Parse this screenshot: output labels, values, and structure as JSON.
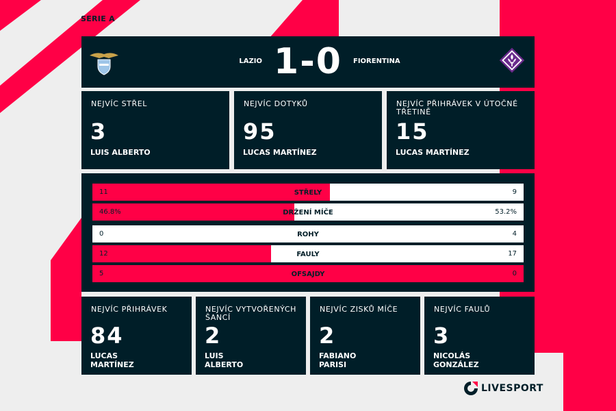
{
  "league": "SERIE A",
  "match": {
    "home_team": "LAZIO",
    "away_team": "FIORENTINA",
    "score": "1-0"
  },
  "top_cards": [
    {
      "title": "NEJVÍC STŘEL",
      "value": "3",
      "player": "LUIS ALBERTO"
    },
    {
      "title": "NEJVÍC DOTYKŮ",
      "value": "95",
      "player": "LUCAS MARTÍNEZ"
    },
    {
      "title": "NEJVÍC PŘIHRÁVEK V ÚTOČNÉ TŘETINĚ",
      "value": "15",
      "player": "LUCAS MARTÍNEZ"
    }
  ],
  "stats": [
    {
      "label": "STŘELY",
      "home": "11",
      "away": "9",
      "home_share": 0.55
    },
    {
      "label": "DRŽENÍ MÍČE",
      "home": "46.8%",
      "away": "53.2%",
      "home_share": 0.468
    },
    {
      "label": "ROHY",
      "home": "0",
      "away": "4",
      "home_share": 0.0
    },
    {
      "label": "FAULY",
      "home": "12",
      "away": "17",
      "home_share": 0.414
    },
    {
      "label": "OFSAJDY",
      "home": "5",
      "away": "0",
      "home_share": 1.0
    }
  ],
  "bottom_cards": [
    {
      "title": "NEJVÍC PŘIHRÁVEK",
      "value": "84",
      "player_line1": "LUCAS",
      "player_line2": "MARTÍNEZ"
    },
    {
      "title": "NEJVÍC VYTVOŘENÝCH ŠANCÍ",
      "value": "2",
      "player_line1": "LUIS",
      "player_line2": "ALBERTO"
    },
    {
      "title": "NEJVÍC ZISKŮ MÍČE",
      "value": "2",
      "player_line1": "FABIANO",
      "player_line2": "PARISI"
    },
    {
      "title": "NEJVÍC FAULŮ",
      "value": "3",
      "player_line1": "NICOLÁS",
      "player_line2": "GONZÁLEZ"
    }
  ],
  "brand": "LIVESPORT",
  "colors": {
    "accent": "#ff0046",
    "dark": "#001e28",
    "background": "#eeeeee",
    "fiorentina_purple": "#6a2b8c"
  },
  "icons": {
    "home_logo": "lazio-eagle-crest-icon",
    "away_logo": "fiorentina-lily-crest-icon",
    "brand_logo": "livesport-logo-icon"
  }
}
